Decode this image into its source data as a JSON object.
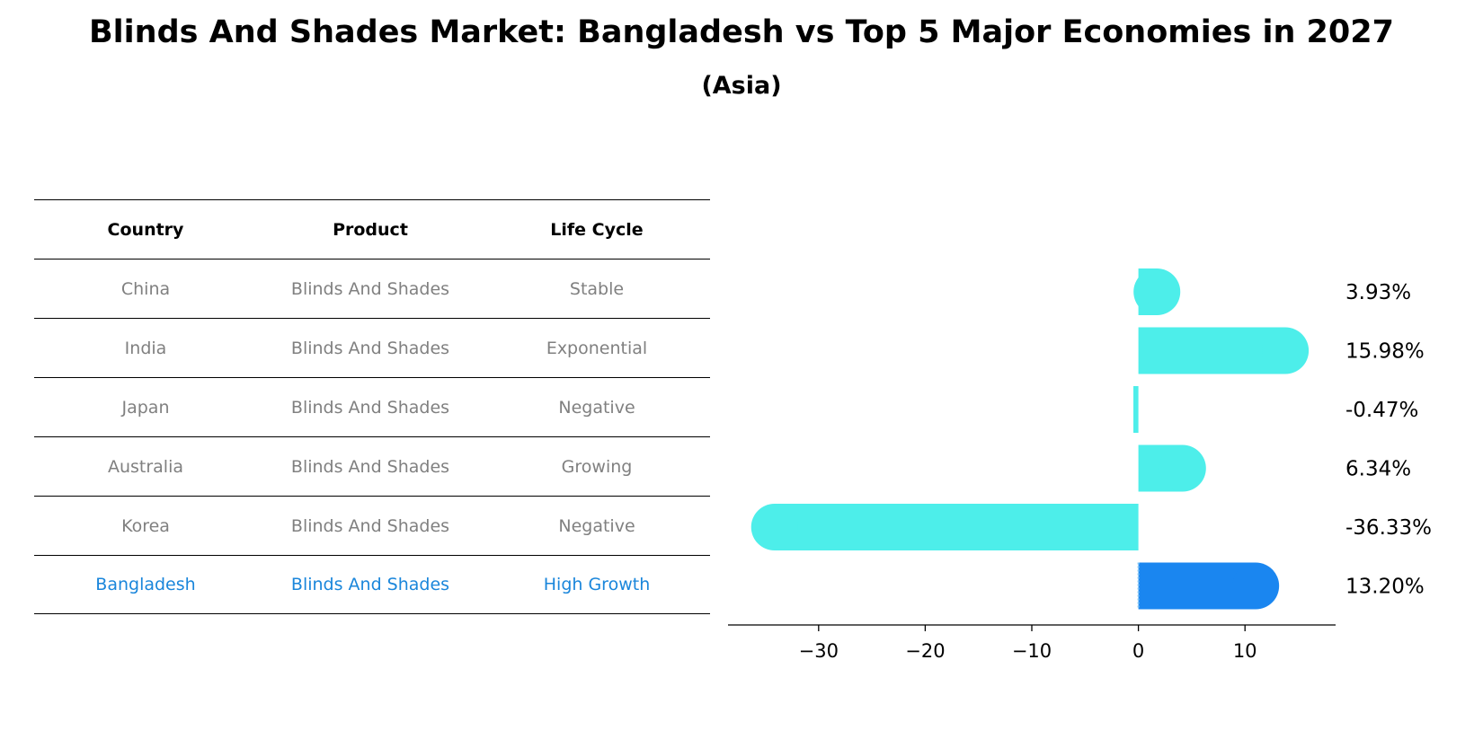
{
  "title": "Blinds And Shades Market: Bangladesh vs Top 5 Major Economies in 2027",
  "subtitle": "(Asia)",
  "table": {
    "headers": [
      "Country",
      "Product",
      "Life Cycle"
    ],
    "rows": [
      [
        "China",
        "Blinds And Shades",
        "Stable"
      ],
      [
        "India",
        "Blinds And Shades",
        "Exponential"
      ],
      [
        "Japan",
        "Blinds And Shades",
        "Negative"
      ],
      [
        "Australia",
        "Blinds And Shades",
        "Growing"
      ],
      [
        "Korea",
        "Blinds And Shades",
        "Negative"
      ],
      [
        "Bangladesh",
        "Blinds And Shades",
        "High Growth"
      ]
    ]
  },
  "chart_data": {
    "type": "bar",
    "orientation": "horizontal",
    "categories": [
      "China",
      "India",
      "Japan",
      "Australia",
      "Korea",
      "Bangladesh"
    ],
    "values": [
      3.93,
      15.98,
      -0.47,
      6.34,
      -36.33,
      13.2
    ],
    "value_labels": [
      "3.93%",
      "15.98%",
      "-0.47%",
      "6.34%",
      "-36.33%",
      "13.20%"
    ],
    "highlight": "Bangladesh",
    "xticks": [
      -30,
      -20,
      -10,
      0,
      10
    ],
    "xtick_labels": [
      "−30",
      "−20",
      "−10",
      "0",
      "10"
    ],
    "xlim": [
      -38.5,
      18.5
    ],
    "colors": {
      "default": "#4deeea",
      "highlight": "#1a86f0"
    }
  }
}
